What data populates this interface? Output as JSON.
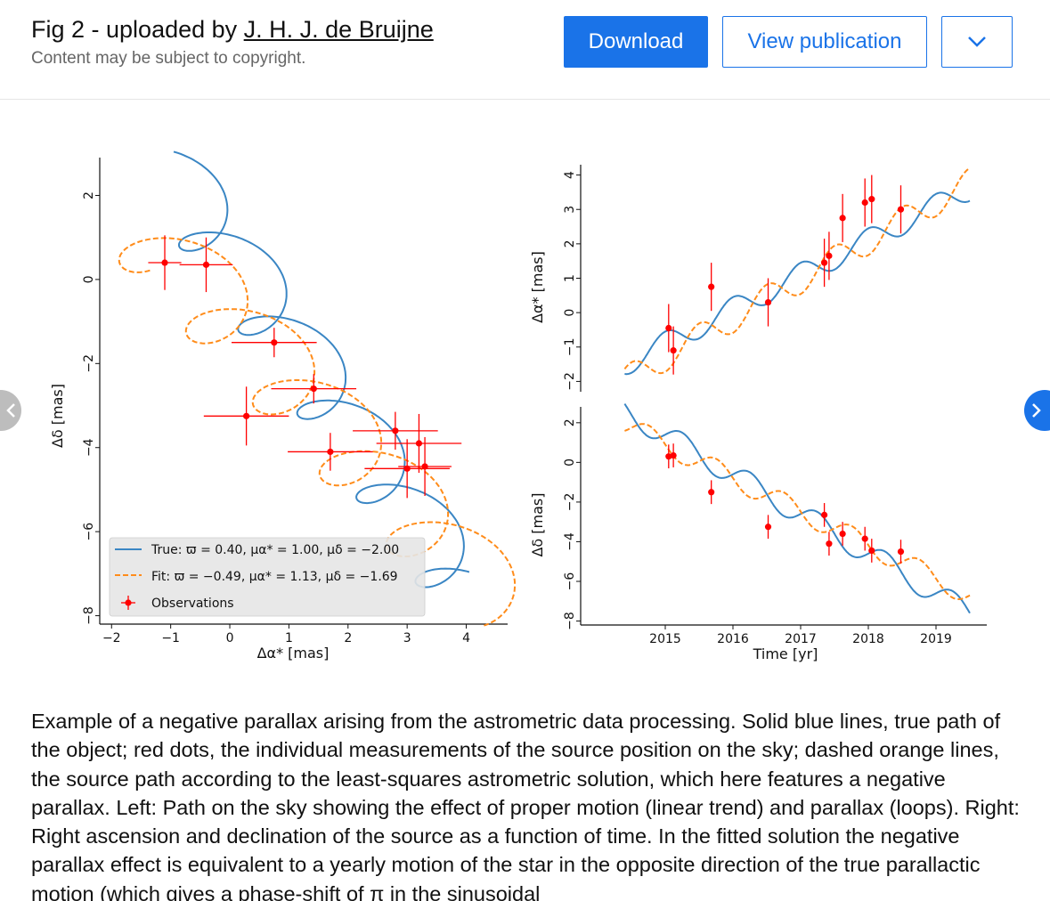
{
  "header": {
    "title_prefix": "Fig 2 - uploaded by ",
    "author": "J. H. J. de Bruijne",
    "copyright": "Content may be subject to copyright.",
    "download_label": "Download",
    "view_label": "View publication",
    "more_icon": "chevron-down-icon"
  },
  "nav": {
    "prev_icon": "chevron-left-icon",
    "next_icon": "chevron-right-icon"
  },
  "colors": {
    "true_path": "#3a86c4",
    "fit_path": "#ff8c1a",
    "observations": "#ff0000",
    "accent": "#1a73e8"
  },
  "chart_data": [
    {
      "type": "line",
      "panel": "sky",
      "xlabel": "Δα* [mas]",
      "ylabel": "Δδ [mas]",
      "xlim": [
        -2.2,
        4.7
      ],
      "ylim": [
        -8.2,
        2.9
      ],
      "xticks": [
        -2,
        -1,
        0,
        1,
        2,
        3,
        4
      ],
      "yticks": [
        -8,
        -6,
        -4,
        -2,
        0,
        2
      ],
      "legend": {
        "position": "lower-left",
        "entries": [
          "True: ϖ = 0.40, μα* = 1.00, μδ = −2.00",
          "Fit: ϖ = −0.49, μα* = 1.13, μδ = −1.69",
          "Observations"
        ]
      },
      "series": [
        {
          "name": "True: ϖ = 0.40, μα* = 1.00, μδ = −2.00",
          "style": "solid",
          "parallax": 0.4,
          "pm_ra": 1.0,
          "pm_dec": -2.0,
          "ra0": -0.95,
          "dec0": 2.4
        },
        {
          "name": "Fit: ϖ = −0.49, μα* = 1.13, μδ = −1.69",
          "style": "dashed",
          "parallax": -0.49,
          "pm_ra": 1.13,
          "pm_dec": -1.69,
          "ra0": -1.35,
          "dec0": 1.0
        }
      ],
      "observations": [
        {
          "x": -1.1,
          "y": 0.4,
          "xerr": 0.28,
          "yerr": 0.65
        },
        {
          "x": -0.4,
          "y": 0.35,
          "xerr": 0.45,
          "yerr": 0.65
        },
        {
          "x": 0.75,
          "y": -1.5,
          "xerr": 0.72,
          "yerr": 0.35
        },
        {
          "x": 1.42,
          "y": -2.6,
          "xerr": 0.72,
          "yerr": 0.35
        },
        {
          "x": 0.28,
          "y": -3.25,
          "xerr": 0.72,
          "yerr": 0.7
        },
        {
          "x": 1.7,
          "y": -4.1,
          "xerr": 0.72,
          "yerr": 0.45
        },
        {
          "x": 2.8,
          "y": -3.6,
          "xerr": 0.72,
          "yerr": 0.45
        },
        {
          "x": 3.2,
          "y": -3.9,
          "xerr": 0.72,
          "yerr": 0.7
        },
        {
          "x": 3.0,
          "y": -4.5,
          "xerr": 0.72,
          "yerr": 0.7
        },
        {
          "x": 3.3,
          "y": -4.45,
          "xerr": 0.45,
          "yerr": 0.7
        }
      ]
    },
    {
      "type": "line",
      "panel": "ra-vs-time",
      "ylabel": "Δα* [mas]",
      "xlim": [
        2013.75,
        2019.75
      ],
      "ylim": [
        -2.3,
        4.3
      ],
      "yticks": [
        -2,
        -1,
        0,
        1,
        2,
        3,
        4
      ],
      "series": [
        {
          "name": "True",
          "style": "solid",
          "x_start": 2014.4,
          "x_end": 2019.5,
          "offset": -0.9,
          "slope": 1.0,
          "amp": 0.35,
          "phase": 1.57
        },
        {
          "name": "Fit",
          "style": "dashed",
          "x_start": 2014.4,
          "x_end": 2019.5,
          "offset": -1.3,
          "slope": 1.13,
          "amp": 0.42,
          "phase": -1.57
        }
      ],
      "observations": [
        {
          "x": 2015.05,
          "y": -0.45,
          "yerr": 0.7
        },
        {
          "x": 2015.12,
          "y": -1.1,
          "yerr": 0.7
        },
        {
          "x": 2015.68,
          "y": 0.75,
          "yerr": 0.7
        },
        {
          "x": 2016.52,
          "y": 0.3,
          "yerr": 0.7
        },
        {
          "x": 2017.35,
          "y": 1.45,
          "yerr": 0.7
        },
        {
          "x": 2017.42,
          "y": 1.65,
          "yerr": 0.7
        },
        {
          "x": 2017.62,
          "y": 2.75,
          "yerr": 0.7
        },
        {
          "x": 2017.95,
          "y": 3.2,
          "yerr": 0.7
        },
        {
          "x": 2018.05,
          "y": 3.3,
          "yerr": 0.7
        },
        {
          "x": 2018.48,
          "y": 3.0,
          "yerr": 0.7
        }
      ]
    },
    {
      "type": "line",
      "panel": "dec-vs-time",
      "xlabel": "Time [yr]",
      "ylabel": "Δδ [mas]",
      "xlim": [
        2013.75,
        2019.75
      ],
      "ylim": [
        -8.2,
        2.8
      ],
      "xticks": [
        2015,
        2016,
        2017,
        2018,
        2019
      ],
      "yticks": [
        -8,
        -6,
        -4,
        -2,
        0,
        2
      ],
      "series": [
        {
          "name": "True",
          "style": "solid",
          "x_start": 2014.4,
          "x_end": 2019.5,
          "offset": 1.4,
          "slope": -2.0,
          "amp": 0.6,
          "phase": 0.0
        },
        {
          "name": "Fit",
          "style": "dashed",
          "x_start": 2014.4,
          "x_end": 2019.5,
          "offset": 0.9,
          "slope": -1.69,
          "amp": 0.55,
          "phase": 3.14
        }
      ],
      "observations": [
        {
          "x": 2015.05,
          "y": 0.3,
          "yerr": 0.6
        },
        {
          "x": 2015.12,
          "y": 0.35,
          "yerr": 0.6
        },
        {
          "x": 2015.68,
          "y": -1.5,
          "yerr": 0.6
        },
        {
          "x": 2016.52,
          "y": -3.25,
          "yerr": 0.6
        },
        {
          "x": 2017.35,
          "y": -2.65,
          "yerr": 0.6
        },
        {
          "x": 2017.42,
          "y": -4.1,
          "yerr": 0.6
        },
        {
          "x": 2017.62,
          "y": -3.6,
          "yerr": 0.6
        },
        {
          "x": 2017.95,
          "y": -3.85,
          "yerr": 0.6
        },
        {
          "x": 2018.05,
          "y": -4.45,
          "yerr": 0.6
        },
        {
          "x": 2018.48,
          "y": -4.5,
          "yerr": 0.6
        }
      ]
    }
  ],
  "caption": "Example of a negative parallax arising from the astrometric data processing. Solid blue lines, true path of the object; red dots, the individual measurements of the source position on the sky; dashed orange lines, the source path according to the least-squares astrometric solution, which here features a negative parallax. Left: Path on the sky showing the effect of proper motion (linear trend) and parallax (loops). Right: Right ascension and declination of the source as a function of time. In the fitted solution the negative parallax effect is equivalent to a yearly motion of the star in the opposite direction of the true parallactic motion (which gives a phase-shift of π in the sinusoidal"
}
